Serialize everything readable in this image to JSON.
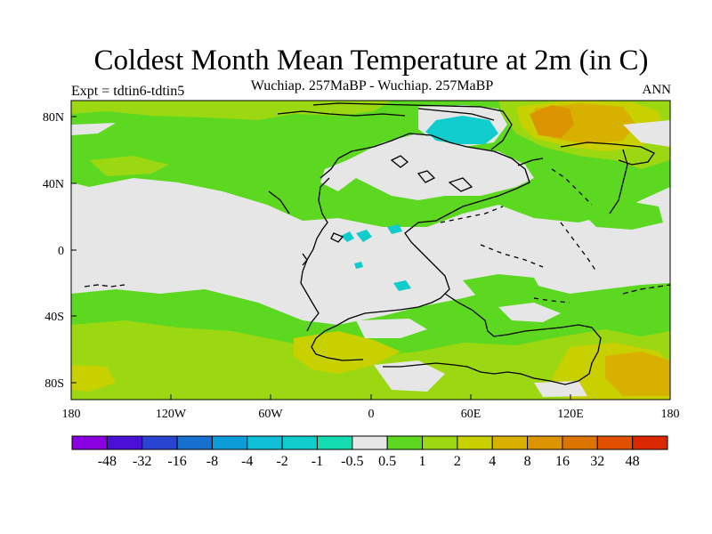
{
  "title": "Coldest Month Mean Temperature at 2m (in C)",
  "subtitle_left": "Expt = tdtin6-tdtin5",
  "subtitle_center": "Wuchiap. 257MaBP - Wuchiap. 257MaBP",
  "subtitle_right": "ANN",
  "axes": {
    "y_ticks": [
      "80N",
      "40N",
      "0",
      "40S",
      "80S"
    ],
    "x_ticks": [
      "180",
      "120W",
      "60W",
      "0",
      "60E",
      "120E",
      "180"
    ]
  },
  "colorbar": {
    "colors": [
      "#8a00e0",
      "#4a10d8",
      "#2844d0",
      "#1870d0",
      "#0c9cd8",
      "#10c0d8",
      "#10cccc",
      "#12dcb0",
      "#e6e6e6",
      "#5cd820",
      "#9cd812",
      "#c8d000",
      "#d8b000",
      "#dc9400",
      "#dc7400",
      "#e05000",
      "#dc2800"
    ],
    "labels": [
      "-48",
      "-32",
      "-16",
      "-8",
      "-4",
      "-2",
      "-1",
      "-0.5",
      "0.5",
      "1",
      "2",
      "4",
      "8",
      "16",
      "32",
      "48"
    ]
  },
  "map": {
    "palette": {
      "neutral": "#e6e6e6",
      "light_green": "#5cd820",
      "yellow_green": "#9cd812",
      "olive": "#c8d000",
      "gold": "#d8b000",
      "orange": "#dc9400",
      "cyan": "#10cccc"
    }
  }
}
